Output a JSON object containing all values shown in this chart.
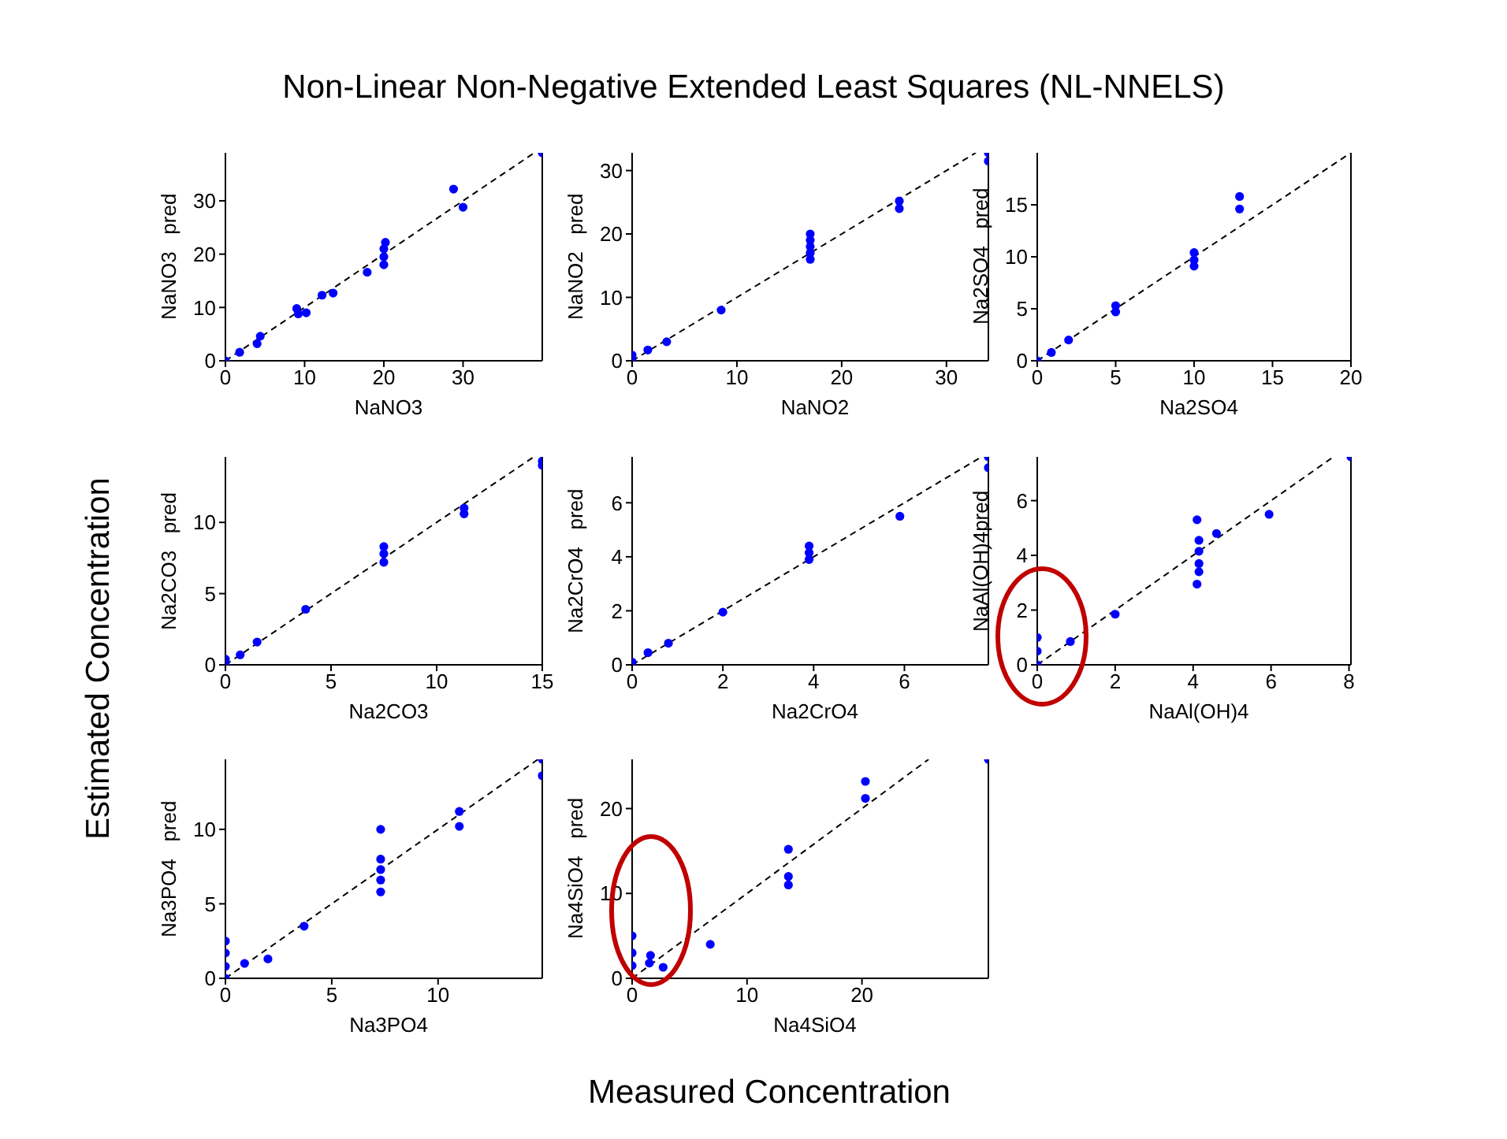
{
  "chart_data": [
    {
      "type": "scatter",
      "title": "Non-Linear Non-Negative Extended Least Squares (NL-NNELS)",
      "annotations": [
        "Estimated Concentration",
        "Measured Concentration"
      ],
      "xlabel": "NaNO3",
      "ylabel": "NaNO3   pred",
      "xlim": [
        0,
        40
      ],
      "ylim": [
        0,
        39
      ],
      "xticks": [
        0,
        10,
        20,
        30
      ],
      "yticks": [
        0,
        10,
        20,
        30
      ],
      "series": [
        {
          "type": "line",
          "line_style": "dashed",
          "color": "#000000",
          "x": [
            0,
            39
          ],
          "values": [
            0,
            39
          ]
        },
        {
          "type": "scatter",
          "marker": "circle",
          "color": "#0000ff",
          "x": [
            0,
            1.8,
            4,
            4.4,
            9,
            9.2,
            10.2,
            12.2,
            13.6,
            17.9,
            20,
            20,
            20,
            20.2,
            28.8,
            30,
            40
          ],
          "values": [
            0,
            1.6,
            3.2,
            4.6,
            9.8,
            8.8,
            9,
            12.3,
            12.7,
            16.6,
            18,
            19.5,
            21,
            22.2,
            32.2,
            28.8,
            39
          ]
        }
      ]
    },
    {
      "type": "scatter",
      "xlabel": "NaNO2",
      "ylabel": "NaNO2   pred",
      "xlim": [
        0,
        34
      ],
      "ylim": [
        0,
        32.8
      ],
      "xticks": [
        0,
        10,
        20,
        30
      ],
      "yticks": [
        0,
        10,
        20,
        30
      ],
      "series": [
        {
          "type": "line",
          "line_style": "dashed",
          "color": "#000000",
          "x": [
            0,
            32.8
          ],
          "values": [
            0,
            32.8
          ]
        },
        {
          "type": "scatter",
          "marker": "circle",
          "color": "#0000ff",
          "x": [
            0,
            0,
            1.5,
            3.3,
            8.5,
            17,
            17,
            17,
            17,
            17,
            25.5,
            25.5,
            34,
            34
          ],
          "values": [
            0,
            0.9,
            1.7,
            3,
            8,
            16,
            17,
            18,
            19,
            20,
            24,
            25.2,
            31.5,
            32.8
          ]
        }
      ]
    },
    {
      "type": "scatter",
      "xlabel": "Na2SO4",
      "ylabel": "Na2SO4   pred",
      "xlim": [
        0,
        20
      ],
      "ylim": [
        0,
        20
      ],
      "xticks": [
        0,
        5,
        10,
        15,
        20
      ],
      "yticks": [
        0,
        5,
        10,
        15
      ],
      "series": [
        {
          "type": "line",
          "line_style": "dashed",
          "color": "#000000",
          "x": [
            0,
            20
          ],
          "values": [
            0,
            20
          ]
        },
        {
          "type": "scatter",
          "marker": "circle",
          "color": "#0000ff",
          "x": [
            0,
            0.9,
            2,
            5,
            5,
            10,
            10,
            10,
            12.9,
            12.9
          ],
          "values": [
            0,
            0.8,
            2,
            4.7,
            5.3,
            9.1,
            9.7,
            10.4,
            14.6,
            15.8
          ]
        }
      ]
    },
    {
      "type": "scatter",
      "xlabel": "Na2CO3",
      "ylabel": "Na2CO3   pred",
      "xlim": [
        0,
        15
      ],
      "ylim": [
        0,
        14.6
      ],
      "xticks": [
        0,
        5,
        10,
        15
      ],
      "yticks": [
        0,
        5,
        10
      ],
      "series": [
        {
          "type": "line",
          "line_style": "dashed",
          "color": "#000000",
          "x": [
            0,
            14.6
          ],
          "values": [
            0,
            14.6
          ]
        },
        {
          "type": "scatter",
          "marker": "circle",
          "color": "#0000ff",
          "x": [
            0,
            0,
            0.7,
            1.5,
            3.8,
            7.5,
            7.5,
            7.5,
            11.3,
            11.3,
            15,
            15
          ],
          "values": [
            0,
            0.4,
            0.7,
            1.6,
            3.9,
            7.2,
            7.8,
            8.3,
            10.6,
            11,
            14,
            14.3
          ]
        }
      ]
    },
    {
      "type": "scatter",
      "xlabel": "Na2CrO4",
      "ylabel": "Na2CrO4   pred",
      "xlim": [
        0,
        7.85
      ],
      "ylim": [
        0,
        7.7
      ],
      "xticks": [
        0,
        2,
        4,
        6
      ],
      "yticks": [
        0,
        2,
        4,
        6
      ],
      "series": [
        {
          "type": "line",
          "line_style": "dashed",
          "color": "#000000",
          "x": [
            0,
            7.7
          ],
          "values": [
            0,
            7.7
          ]
        },
        {
          "type": "scatter",
          "marker": "circle",
          "color": "#0000ff",
          "x": [
            0,
            0.35,
            0.8,
            2,
            3.9,
            3.9,
            3.9,
            5.9,
            7.85,
            7.85
          ],
          "values": [
            0.1,
            0.45,
            0.8,
            1.95,
            3.9,
            4.15,
            4.4,
            5.5,
            7.7,
            7.3
          ]
        }
      ]
    },
    {
      "type": "scatter",
      "xlabel": "NaAl(OH)4",
      "ylabel": "NaAl(OH)4pred",
      "xlim": [
        0,
        8.05
      ],
      "ylim": [
        0,
        7.6
      ],
      "xticks": [
        0,
        2,
        4,
        6,
        8
      ],
      "yticks": [
        0,
        2,
        4,
        6
      ],
      "series": [
        {
          "type": "line",
          "line_style": "dashed",
          "color": "#000000",
          "x": [
            0,
            7.6
          ],
          "values": [
            0,
            7.6
          ]
        },
        {
          "type": "scatter",
          "marker": "circle",
          "color": "#0000ff",
          "x": [
            0,
            0,
            0,
            0.85,
            2,
            4.1,
            4.15,
            4.15,
            4.15,
            4.15,
            4.1,
            4.6,
            5.95,
            8.05
          ],
          "values": [
            0,
            0.5,
            1,
            0.85,
            1.85,
            2.95,
            3.4,
            3.7,
            4.15,
            4.55,
            5.3,
            4.8,
            5.5,
            7.6
          ]
        }
      ]
    },
    {
      "type": "scatter",
      "xlabel": "Na3PO4",
      "ylabel": "Na3PO4   pred",
      "xlim": [
        0,
        14.9
      ],
      "ylim": [
        0,
        14.7
      ],
      "xticks": [
        0,
        5,
        10
      ],
      "yticks": [
        0,
        5,
        10
      ],
      "series": [
        {
          "type": "line",
          "line_style": "dashed",
          "color": "#000000",
          "x": [
            0,
            14.7
          ],
          "values": [
            0,
            14.7
          ]
        },
        {
          "type": "scatter",
          "marker": "circle",
          "color": "#0000ff",
          "x": [
            0,
            0,
            0,
            0,
            0.9,
            2,
            3.7,
            7.3,
            7.3,
            7.3,
            7.3,
            7.3,
            11,
            11,
            14.9,
            14.9
          ],
          "values": [
            0,
            0.8,
            1.7,
            2.5,
            1,
            1.3,
            3.5,
            5.8,
            6.6,
            7.3,
            8,
            10,
            10.2,
            11.2,
            13.6,
            14.7
          ]
        }
      ]
    },
    {
      "type": "scatter",
      "xlabel": "Na4SiO4",
      "ylabel": "Na4SiO4   pred",
      "xlim": [
        0,
        31
      ],
      "ylim": [
        0,
        25.8
      ],
      "xticks": [
        0,
        10,
        20
      ],
      "yticks": [
        0,
        10,
        20
      ],
      "series": [
        {
          "type": "line",
          "line_style": "dashed",
          "color": "#000000",
          "x": [
            0,
            25.8
          ],
          "values": [
            0,
            25.8
          ]
        },
        {
          "type": "scatter",
          "marker": "circle",
          "color": "#0000ff",
          "x": [
            0,
            0,
            0,
            1.5,
            1.6,
            2.7,
            6.8,
            13.6,
            13.6,
            13.6,
            20.3,
            20.3,
            31
          ],
          "values": [
            1.5,
            3,
            5,
            1.8,
            2.7,
            1.3,
            4,
            11,
            12,
            15.2,
            21.2,
            23.2,
            25.8
          ]
        }
      ]
    }
  ]
}
